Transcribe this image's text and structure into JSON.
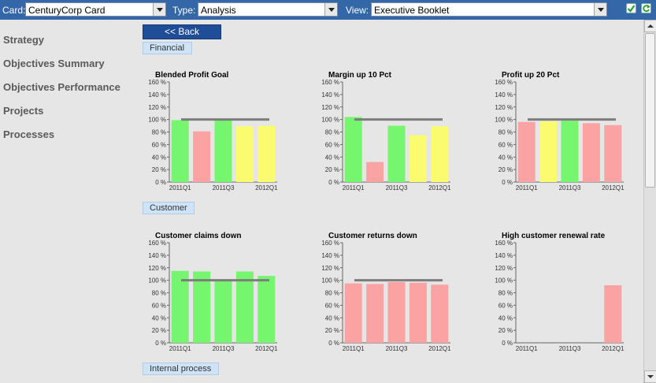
{
  "toolbar": {
    "card_label": "Card:",
    "card_value": "CenturyCorp Card",
    "type_label": "Type:",
    "type_value": "Analysis",
    "view_label": "View:",
    "view_value": "Executive Booklet",
    "save_icon": "checkmark-icon",
    "refresh_icon": "refresh-icon",
    "colors": {
      "bar": "#3467a8",
      "save": "#3aa03a",
      "refresh": "#3aa03a"
    }
  },
  "sidebar": {
    "items": [
      {
        "label": "Strategy"
      },
      {
        "label": "Objectives Summary"
      },
      {
        "label": "Objectives Performance"
      },
      {
        "label": "Projects"
      },
      {
        "label": "Processes"
      }
    ]
  },
  "main": {
    "back_label": "<< Back",
    "sections": [
      {
        "label": "Financial"
      },
      {
        "label": "Customer"
      },
      {
        "label": "Internal process"
      }
    ]
  },
  "colors": {
    "green": "#76f56f",
    "red": "#fba3a3",
    "yellow": "#fbfb6f",
    "target": "#7d7d7d"
  },
  "chart_data": [
    {
      "type": "bar",
      "title": "Blended Profit Goal",
      "ylim": [
        0,
        160
      ],
      "yticks": [
        "0 %",
        "20 %",
        "40 %",
        "60 %",
        "80 %",
        "100 %",
        "120 %",
        "140 %",
        "160 %"
      ],
      "xticks": [
        "2011Q1",
        "2011Q3",
        "2012Q1"
      ],
      "target": 100,
      "values": [
        99,
        81,
        99,
        89,
        90
      ],
      "status": [
        "green",
        "red",
        "green",
        "yellow",
        "yellow"
      ]
    },
    {
      "type": "bar",
      "title": "Margin up 10 Pct",
      "ylim": [
        0,
        160
      ],
      "yticks": [
        "0 %",
        "20 %",
        "40 %",
        "60 %",
        "80 %",
        "100 %",
        "120 %",
        "140 %",
        "160 %"
      ],
      "xticks": [
        "2011Q1",
        "2011Q3",
        "2012Q1"
      ],
      "target": 100,
      "values": [
        104,
        32,
        90,
        75,
        89
      ],
      "status": [
        "green",
        "red",
        "green",
        "yellow",
        "yellow"
      ]
    },
    {
      "type": "bar",
      "title": "Profit up 20 Pct",
      "ylim": [
        0,
        160
      ],
      "yticks": [
        "0 %",
        "20 %",
        "40 %",
        "60 %",
        "80 %",
        "100 %",
        "120 %",
        "140 %",
        "160 %"
      ],
      "xticks": [
        "2011Q1",
        "2011Q3",
        "2012Q1"
      ],
      "target": 100,
      "values": [
        96,
        97,
        98,
        94,
        91
      ],
      "status": [
        "red",
        "yellow",
        "green",
        "red",
        "red"
      ]
    },
    {
      "type": "bar",
      "title": "Customer claims down",
      "ylim": [
        0,
        160
      ],
      "yticks": [
        "0 %",
        "20 %",
        "40 %",
        "60 %",
        "80 %",
        "100 %",
        "120 %",
        "140 %",
        "160 %"
      ],
      "xticks": [
        "2011Q1",
        "2011Q3",
        "2012Q1"
      ],
      "target": 100,
      "values": [
        115,
        114,
        101,
        114,
        107
      ],
      "status": [
        "green",
        "green",
        "green",
        "green",
        "green"
      ]
    },
    {
      "type": "bar",
      "title": "Customer returns down",
      "ylim": [
        0,
        160
      ],
      "yticks": [
        "0 %",
        "20 %",
        "40 %",
        "60 %",
        "80 %",
        "100 %",
        "120 %",
        "140 %",
        "160 %"
      ],
      "xticks": [
        "2011Q1",
        "2011Q3",
        "2012Q1"
      ],
      "target": 100,
      "values": [
        95,
        94,
        97,
        96,
        93
      ],
      "status": [
        "red",
        "red",
        "red",
        "red",
        "red"
      ]
    },
    {
      "type": "bar",
      "title": "High customer renewal rate",
      "ylim": [
        0,
        160
      ],
      "yticks": [
        "0 %",
        "20 %",
        "40 %",
        "60 %",
        "80 %",
        "100 %",
        "120 %",
        "140 %",
        "160 %"
      ],
      "xticks": [
        "2011Q1",
        "2011Q3",
        "2012Q1"
      ],
      "target": null,
      "values": [
        null,
        null,
        null,
        null,
        92
      ],
      "status": [
        "",
        "",
        "",
        "",
        "red"
      ]
    }
  ]
}
